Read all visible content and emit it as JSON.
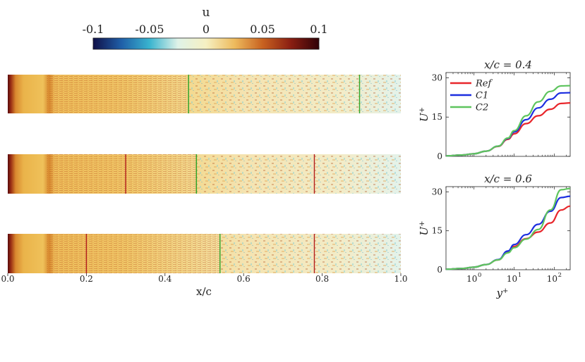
{
  "colorbar": {
    "title": "u",
    "ticks": [
      "-0.1",
      "-0.05",
      "0",
      "0.05",
      "0.1"
    ],
    "tick_values": [
      -0.1,
      -0.05,
      0,
      0.05,
      0.1
    ],
    "range": [
      -0.1,
      0.1
    ],
    "colors": [
      "#101048",
      "#1f5fa8",
      "#39b4cf",
      "#dff2e8",
      "#f6f0c2",
      "#eebb5e",
      "#c86220",
      "#8a1e12",
      "#300208"
    ]
  },
  "contours": {
    "xlabel": "x/c",
    "ticks": [
      "0.0",
      "0.2",
      "0.4",
      "0.6",
      "0.8",
      "1.0"
    ],
    "tick_values": [
      0.0,
      0.2,
      0.4,
      0.6,
      0.8,
      1.0
    ],
    "panels": [
      {
        "marker_lines": [
          {
            "x": 0.46,
            "color": "#2aa52a"
          },
          {
            "x": 0.895,
            "color": "#2aa52a"
          }
        ],
        "transition_x": 0.46
      },
      {
        "marker_lines": [
          {
            "x": 0.3,
            "color": "#b21e1e"
          },
          {
            "x": 0.48,
            "color": "#2aa52a"
          },
          {
            "x": 0.78,
            "color": "#b21e1e"
          }
        ],
        "transition_x": 0.48
      },
      {
        "marker_lines": [
          {
            "x": 0.2,
            "color": "#b21e1e"
          },
          {
            "x": 0.54,
            "color": "#2aa52a"
          },
          {
            "x": 0.78,
            "color": "#b21e1e"
          }
        ],
        "transition_x": 0.54
      }
    ]
  },
  "chart_data": [
    {
      "type": "line",
      "title": "x/c = 0.4",
      "ylabel": "U+",
      "xscale": "log",
      "xlim": [
        0.2,
        250
      ],
      "ylim": [
        0,
        32
      ],
      "yticks": [
        "0",
        "15",
        "30"
      ],
      "ytick_values": [
        0,
        15,
        30
      ],
      "legend": "top-left",
      "series": [
        {
          "name": "Ref",
          "color": "#e8262b",
          "x": [
            0.2,
            0.5,
            1,
            2,
            4,
            7,
            10,
            20,
            40,
            80,
            150,
            250
          ],
          "values": [
            0.2,
            0.5,
            1.0,
            2.0,
            3.8,
            6.5,
            8.6,
            12.5,
            15.5,
            18.0,
            20.2,
            20.4
          ]
        },
        {
          "name": "C1",
          "color": "#1c2ee0",
          "x": [
            0.2,
            0.5,
            1,
            2,
            4,
            7,
            10,
            20,
            40,
            80,
            150,
            250
          ],
          "values": [
            0.2,
            0.5,
            1.0,
            2.0,
            3.9,
            6.8,
            9.3,
            14.0,
            18.5,
            21.8,
            24.2,
            24.3
          ]
        },
        {
          "name": "C2",
          "color": "#5ec45e",
          "x": [
            0.2,
            0.5,
            1,
            2,
            4,
            7,
            10,
            20,
            40,
            80,
            150,
            250
          ],
          "values": [
            0.2,
            0.5,
            1.0,
            2.0,
            3.9,
            7.0,
            9.8,
            15.5,
            20.8,
            24.8,
            26.9,
            27.0
          ]
        }
      ]
    },
    {
      "type": "line",
      "title": "x/c = 0.6",
      "xlabel": "y+",
      "ylabel": "U+",
      "xscale": "log",
      "xlim": [
        0.2,
        250
      ],
      "ylim": [
        0,
        32
      ],
      "xticks": [
        "10",
        "10",
        "10"
      ],
      "xtick_exps": [
        "0",
        "1",
        "2"
      ],
      "xtick_values": [
        1,
        10,
        100
      ],
      "yticks": [
        "0",
        "15",
        "30"
      ],
      "ytick_values": [
        0,
        15,
        30
      ],
      "series": [
        {
          "name": "Ref",
          "color": "#e8262b",
          "x": [
            0.2,
            0.5,
            1,
            2,
            4,
            7,
            10,
            20,
            40,
            80,
            150,
            250
          ],
          "values": [
            0.2,
            0.5,
            1.0,
            2.0,
            3.8,
            6.8,
            9.0,
            12.0,
            14.5,
            18.0,
            23.0,
            24.5
          ]
        },
        {
          "name": "C1",
          "color": "#1c2ee0",
          "x": [
            0.2,
            0.5,
            1,
            2,
            4,
            7,
            10,
            20,
            40,
            80,
            150,
            250
          ],
          "values": [
            0.2,
            0.5,
            1.0,
            2.0,
            3.9,
            7.2,
            9.7,
            13.5,
            17.5,
            22.5,
            27.8,
            28.3
          ]
        },
        {
          "name": "C2",
          "color": "#5ec45e",
          "x": [
            0.2,
            0.5,
            1,
            2,
            4,
            7,
            10,
            20,
            40,
            80,
            150,
            250
          ],
          "values": [
            0.2,
            0.5,
            1.0,
            2.0,
            3.8,
            6.5,
            8.5,
            11.8,
            15.5,
            23.0,
            30.8,
            31.3
          ]
        }
      ]
    }
  ]
}
